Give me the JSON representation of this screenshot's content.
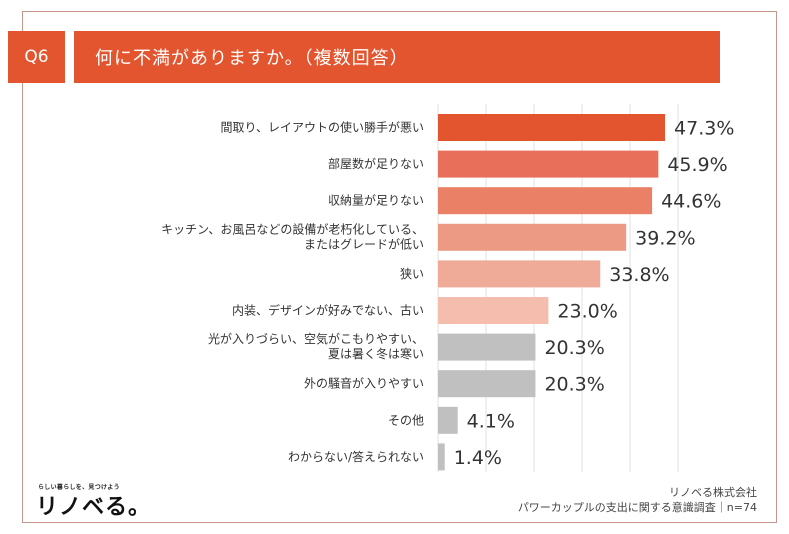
{
  "header": {
    "question_no": "Q6",
    "title": "何に不満がありますか。（複数回答）"
  },
  "chart_data": {
    "type": "bar",
    "orientation": "horizontal",
    "title": "何に不満がありますか。（複数回答）",
    "xlabel": "",
    "ylabel": "",
    "xlim": [
      0,
      50
    ],
    "grid": true,
    "gridlines": [
      0,
      10,
      20,
      30,
      40,
      50
    ],
    "categories": [
      [
        "間取り、レイアウトの使い勝手が悪い"
      ],
      [
        "部屋数が足りない"
      ],
      [
        "収納量が足りない"
      ],
      [
        "キッチン、お風呂などの設備が老朽化している、",
        "またはグレードが低い"
      ],
      [
        "狭い"
      ],
      [
        "内装、デザインが好みでない、古い"
      ],
      [
        "光が入りづらい、空気がこもりやすい、",
        "夏は暑く冬は寒い"
      ],
      [
        "外の騒音が入りやすい"
      ],
      [
        "その他"
      ],
      [
        "わからない/答えられない"
      ]
    ],
    "values": [
      47.3,
      45.9,
      44.6,
      39.2,
      33.8,
      23.0,
      20.3,
      20.3,
      4.1,
      1.4
    ],
    "value_labels": [
      "47.3%",
      "45.9%",
      "44.6%",
      "39.2%",
      "33.8%",
      "23.0%",
      "20.3%",
      "20.3%",
      "4.1%",
      "1.4%"
    ],
    "colors": [
      "#e2552f",
      "#e8705a",
      "#ea8066",
      "#ed9a85",
      "#f0ab98",
      "#f4bdae",
      "#c0c0c0",
      "#c0c0c0",
      "#c0c0c0",
      "#c0c0c0"
    ],
    "grid_color": "#e2e2e2"
  },
  "footer": {
    "logo_tagline": "らしい暮らしを、見つけよう",
    "logo_text": "リノベる。",
    "company": "リノベる株式会社",
    "survey": "パワーカップルの支出に関する意識調査｜n=74"
  }
}
